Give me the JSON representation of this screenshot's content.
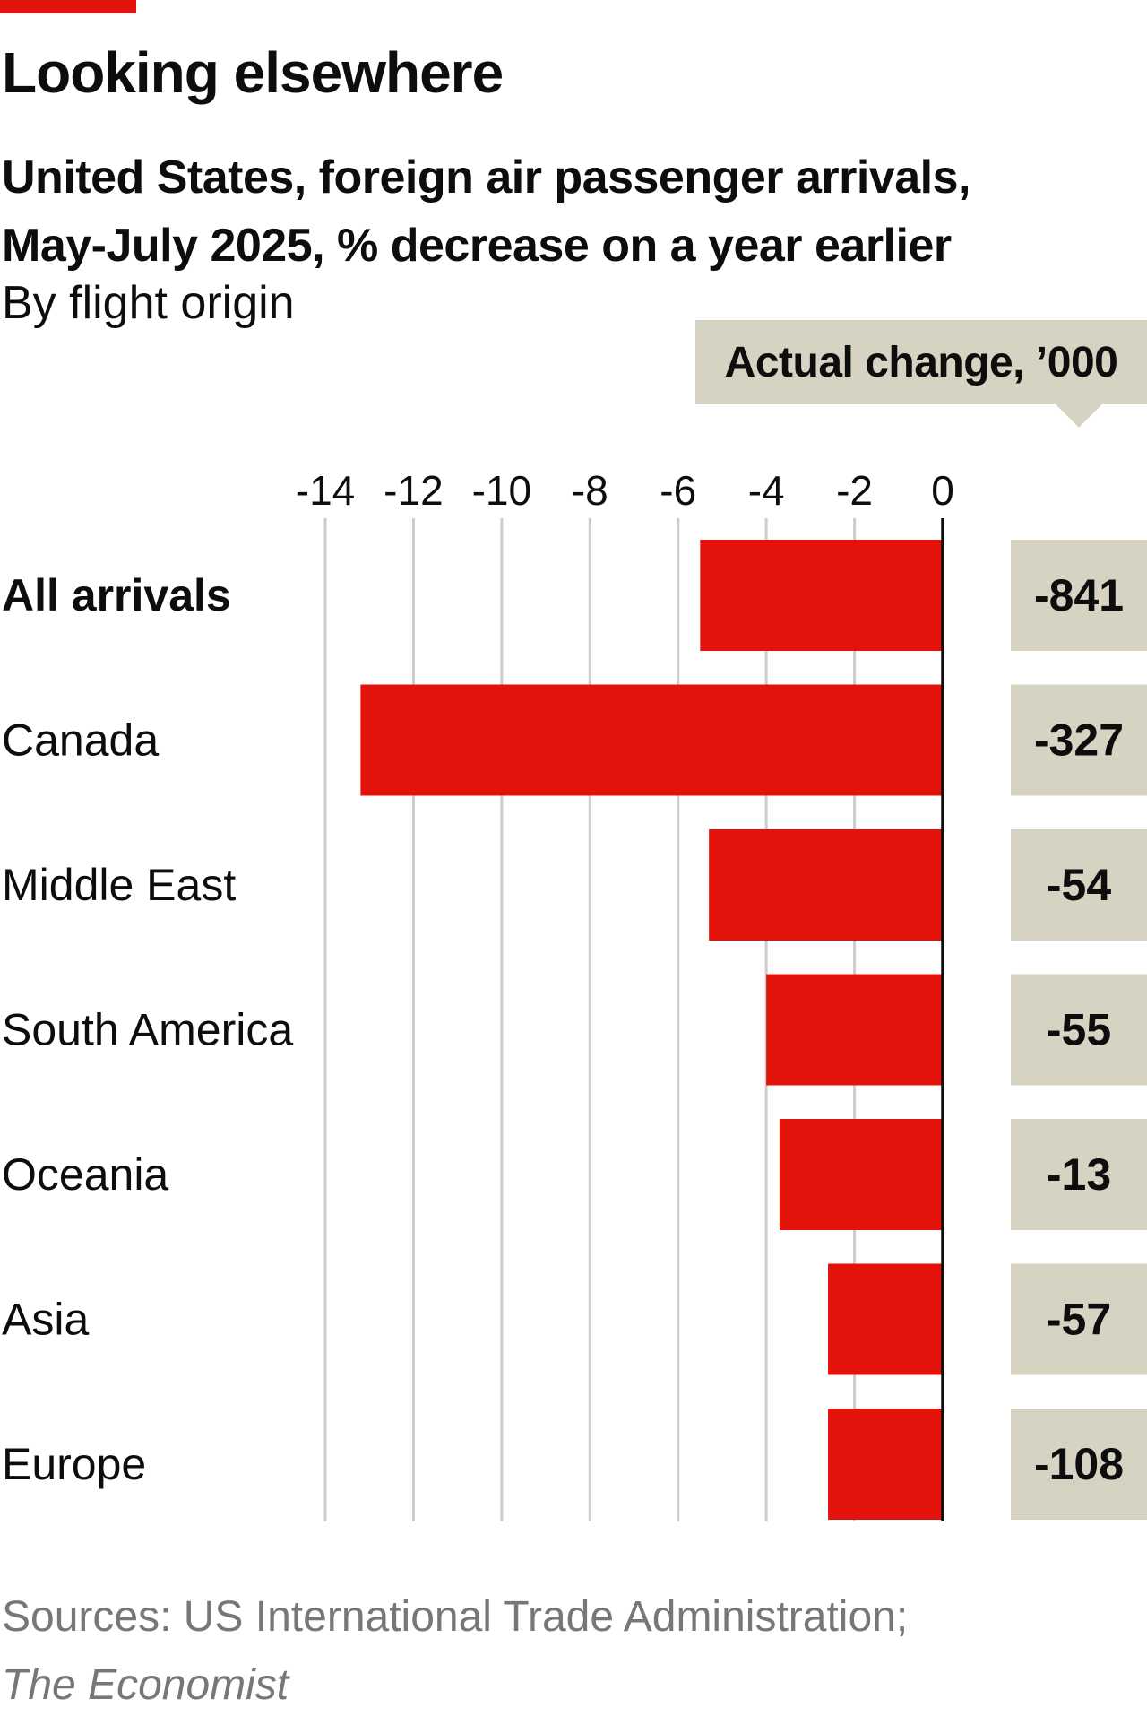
{
  "title": "Looking elsewhere",
  "subtitle_line1": "United States, foreign air passenger arrivals,",
  "subtitle_line2": "May-July 2025, % decrease on a year earlier",
  "description": "By flight origin",
  "actual_change_header": "Actual change, ’000",
  "source_line1": "Sources: US International Trade Administration;",
  "source_line2": "The Economist",
  "colors": {
    "bar": "#e3120b",
    "label_box": "#d6d3c3",
    "grid": "#cccccc",
    "zero_line": "#0d0d0d",
    "source_text": "#777777"
  },
  "chart_data": {
    "type": "bar",
    "orientation": "horizontal",
    "categories": [
      "All arrivals",
      "Canada",
      "Middle East",
      "South America",
      "Oceania",
      "Asia",
      "Europe"
    ],
    "bold_categories": [
      "All arrivals"
    ],
    "values": [
      -5.5,
      -13.2,
      -5.3,
      -4.0,
      -3.7,
      -2.6,
      -2.6
    ],
    "actual_change": [
      "-841",
      "-327",
      "-54",
      "-55",
      "-13",
      "-57",
      "-108"
    ],
    "xlim": [
      -14,
      0
    ],
    "xticks": [
      -14,
      -12,
      -10,
      -8,
      -6,
      -4,
      -2,
      0
    ],
    "xtick_labels": [
      "-14",
      "-12",
      "-10",
      "-8",
      "-6",
      "-4",
      "-2",
      "0"
    ],
    "grid": true,
    "xlabel": "",
    "ylabel": ""
  }
}
